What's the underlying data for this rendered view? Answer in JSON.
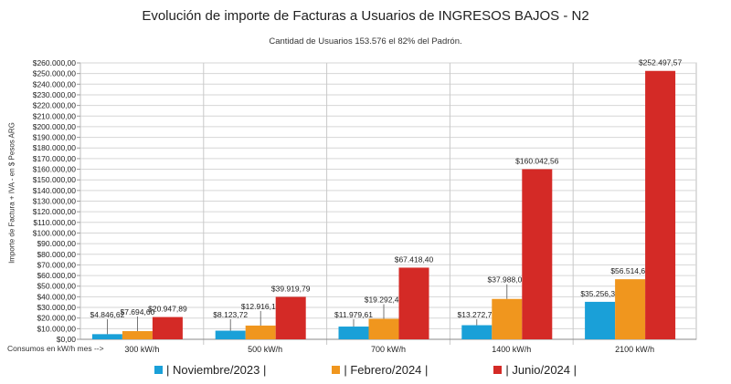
{
  "chart_data": {
    "type": "bar",
    "title": "Evolución de importe de Facturas a Usuarios de INGRESOS BAJOS - N2",
    "subtitle": "Cantidad de Usuarios 153.576 el 82% del Padrón.",
    "ylabel": "Importe de Factura + IVA - en $ Pesos ARG",
    "xlabel": "Consumos en kW/h mes -->",
    "ylim": [
      0,
      260000
    ],
    "ytick_step": 10000,
    "grid": true,
    "legend_position": "bottom",
    "categories": [
      "300 kW/h",
      "500 kW/h",
      "700 kW/h",
      "1400 kW/h",
      "2100 kW/h"
    ],
    "series": [
      {
        "name": "| Noviembre/2023 |",
        "color": "#1aa0d8",
        "values": [
          4846.62,
          8123.72,
          11979.61,
          13272.79,
          35256.34
        ],
        "labels": [
          "$4.846,62",
          "$8.123,72",
          "$11.979,61",
          "$13.272,79",
          "$35.256,34"
        ]
      },
      {
        "name": "| Febrero/2024 |",
        "color": "#f0961e",
        "values": [
          7694.6,
          12916.15,
          19292.49,
          37988.0,
          56514.68
        ],
        "labels": [
          "$7.694,60",
          "$12.916,15",
          "$19.292,49",
          "$37.988,00",
          "$56.514,68"
        ]
      },
      {
        "name": "| Junio/2024 |",
        "color": "#d42a26",
        "values": [
          20947.89,
          39919.79,
          67418.4,
          160042.56,
          252497.57
        ],
        "labels": [
          "$20.947,89",
          "$39.919,79",
          "$67.418,40",
          "$160.042,56",
          "$252.497,57"
        ]
      }
    ]
  }
}
